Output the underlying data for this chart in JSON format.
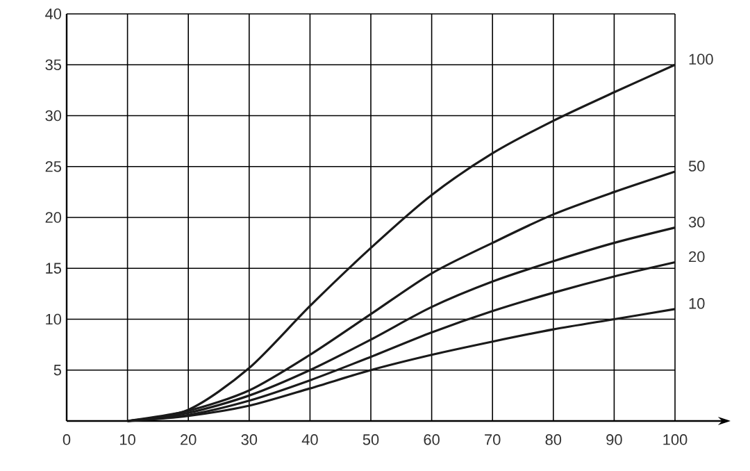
{
  "chart_data": {
    "type": "line",
    "x": [
      10,
      20,
      30,
      40,
      50,
      60,
      70,
      80,
      90,
      100
    ],
    "series": [
      {
        "name": "100",
        "color": "#1a1a1a",
        "values": [
          0,
          1.1,
          5.2,
          11.3,
          17,
          22.2,
          26.3,
          29.5,
          32.3,
          35
        ]
      },
      {
        "name": "50",
        "color": "#1a1a1a",
        "values": [
          0,
          1,
          3,
          6.5,
          10.5,
          14.5,
          17.5,
          20.3,
          22.5,
          24.5
        ]
      },
      {
        "name": "30",
        "color": "#1a1a1a",
        "values": [
          0,
          0.8,
          2.5,
          5,
          8,
          11.2,
          13.7,
          15.7,
          17.5,
          19
        ]
      },
      {
        "name": "20",
        "color": "#1a1a1a",
        "values": [
          0,
          0.6,
          2,
          4,
          6.3,
          8.7,
          10.8,
          12.6,
          14.2,
          15.6
        ]
      },
      {
        "name": "10",
        "color": "#1a1a1a",
        "values": [
          0,
          0.5,
          1.5,
          3.2,
          5,
          6.5,
          7.8,
          9,
          10,
          11
        ]
      }
    ],
    "xlim": [
      0,
      100
    ],
    "ylim": [
      0,
      40
    ],
    "xticks": [
      0,
      10,
      20,
      30,
      40,
      50,
      60,
      70,
      80,
      90,
      100
    ],
    "yticks": [
      5,
      10,
      15,
      20,
      25,
      30,
      35,
      40
    ],
    "grid": true,
    "marker": "none",
    "line_style": "solid"
  }
}
